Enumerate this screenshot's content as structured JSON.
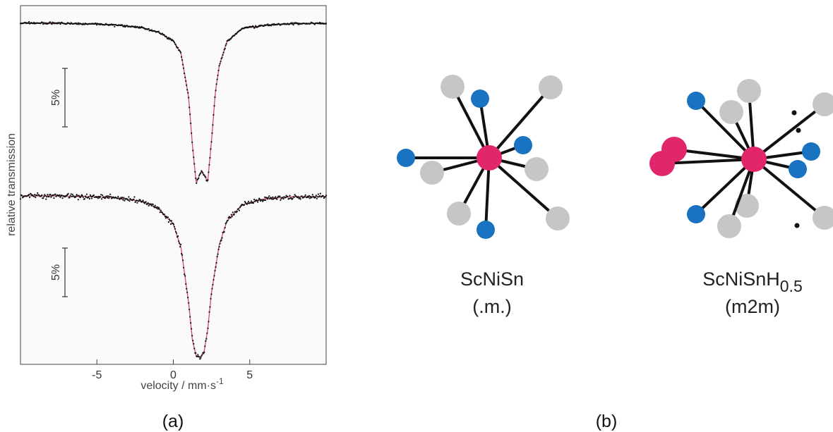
{
  "chart_data": {
    "type": "scatter",
    "xlabel": "velocity / mm·s",
    "xlabel_exp": "-1",
    "ylabel": "relative transmission",
    "xlim": [
      -10,
      10
    ],
    "xticks": [
      -5,
      0,
      5
    ],
    "x_tick_labels": [
      "-5",
      "0",
      "5"
    ],
    "scale_bar_label": "5%",
    "grid": false,
    "series": [
      {
        "baseline_pct": 100,
        "x": [
          -8,
          -4,
          -2,
          -1,
          0,
          0.5,
          1.0,
          1.25,
          1.5,
          1.75,
          1.85,
          2.0,
          2.25,
          2.5,
          2.75,
          3.0,
          3.5,
          4.5,
          6,
          8
        ],
        "y_pct": [
          99.95,
          99.75,
          99.4,
          98.9,
          97.9,
          96.5,
          91.5,
          86.0,
          81.6,
          82.7,
          83.0,
          82.6,
          81.8,
          86.5,
          92.0,
          95.0,
          97.8,
          99.3,
          99.7,
          99.9
        ]
      },
      {
        "baseline_pct": 100,
        "x": [
          -8,
          -4,
          -2,
          -1,
          0,
          0.5,
          1.0,
          1.25,
          1.5,
          1.75,
          2.0,
          2.25,
          2.5,
          3.0,
          3.5,
          4.5,
          6,
          8
        ],
        "y_pct": [
          100,
          99.8,
          99.2,
          98.2,
          95.9,
          92.5,
          84.5,
          79.0,
          76.7,
          76.5,
          77.2,
          80.5,
          86.0,
          92.8,
          96.3,
          98.7,
          99.6,
          99.9
        ]
      }
    ]
  },
  "structures": [
    {
      "formula": "ScNiSn",
      "symmetry": "(.m.)"
    },
    {
      "formula": "ScNiSnH",
      "formula_sub": "0.5",
      "symmetry": "(m2m)"
    }
  ],
  "panel_labels": [
    "(a)",
    "(b)"
  ],
  "colors": {
    "fit_line": "#d0487a",
    "data_point": "#111111",
    "center_atom": "#e2266b",
    "blue_atom": "#1a73c0",
    "grey_atom": "#c6c6c6",
    "bond": "#111111",
    "plot_bg": "#fafafa"
  }
}
